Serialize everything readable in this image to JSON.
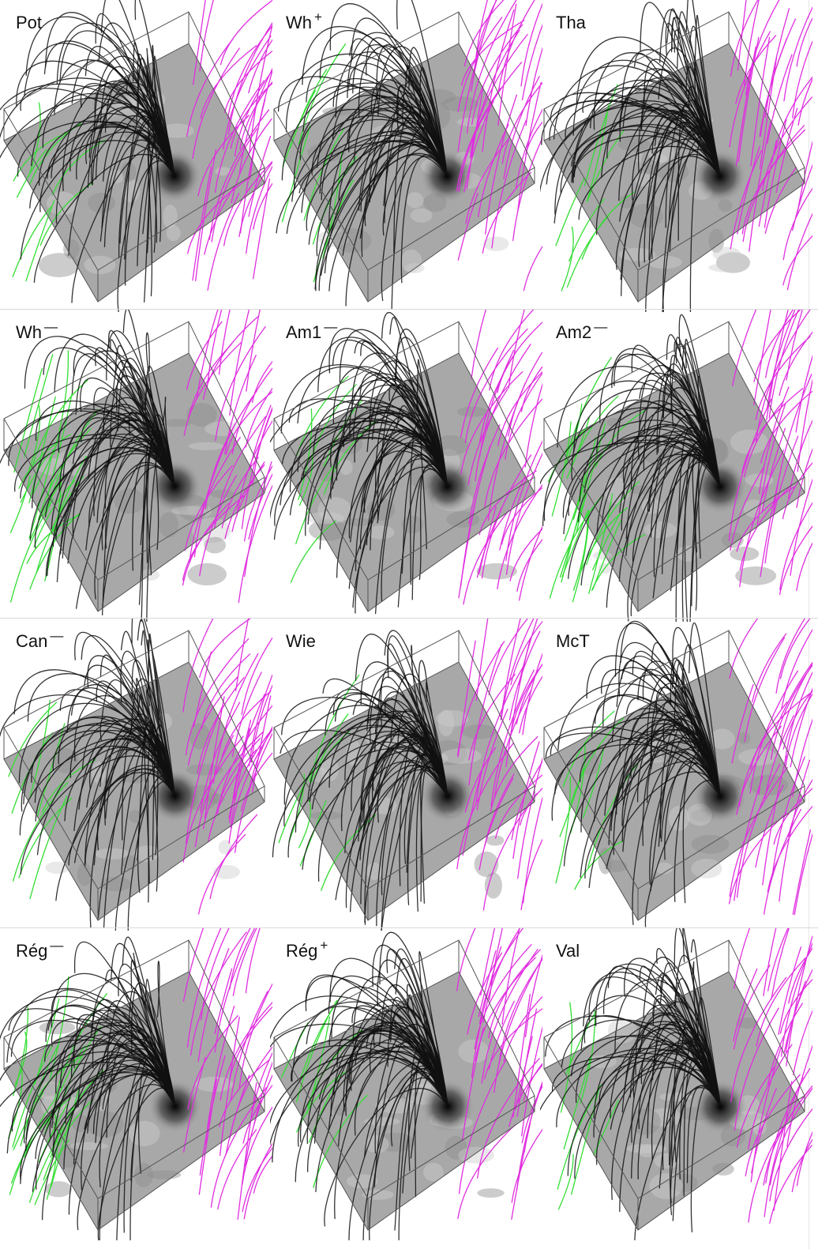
{
  "panels": [
    {
      "label": "Pot",
      "sup": ""
    },
    {
      "label": "Wh",
      "sup": "+"
    },
    {
      "label": "Tha",
      "sup": ""
    },
    {
      "label": "Wh",
      "sup": "—"
    },
    {
      "label": "Am1",
      "sup": "—"
    },
    {
      "label": "Am2",
      "sup": "—"
    },
    {
      "label": "Can",
      "sup": "—"
    },
    {
      "label": "Wie",
      "sup": ""
    },
    {
      "label": "McT",
      "sup": ""
    },
    {
      "label": "Rég",
      "sup": "—"
    },
    {
      "label": "Rég",
      "sup": "+"
    },
    {
      "label": "Val",
      "sup": ""
    }
  ],
  "colors": {
    "closed_field_lines": "#111111",
    "open_positive_lines": "#e02ee0",
    "open_negative_lines": "#33dd33",
    "magnetogram_background": "#a8a8a8",
    "box_edges": "#555555"
  }
}
